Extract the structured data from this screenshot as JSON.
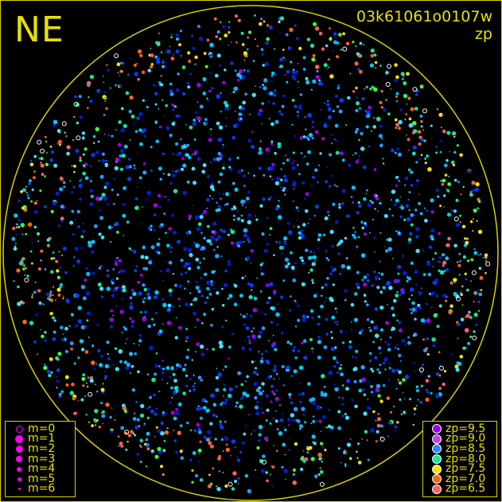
{
  "orientation_label": "NE",
  "title": {
    "id": "03k61061o0107w",
    "mode": "zp"
  },
  "colors": {
    "frame": "#d8d000",
    "text": "#e8e000",
    "background": "#000000"
  },
  "magnitude_legend": [
    {
      "label": "m=0",
      "style": "ring"
    },
    {
      "label": "m=1",
      "style": "dot"
    },
    {
      "label": "m=2",
      "style": "dot"
    },
    {
      "label": "m=3",
      "style": "dot"
    },
    {
      "label": "m=4",
      "style": "dot"
    },
    {
      "label": "m=5",
      "style": "dot"
    },
    {
      "label": "m=6",
      "style": "dot"
    }
  ],
  "magnitude_legend_color": "#ff00ff",
  "zp_legend": [
    {
      "label": "zp=9.5",
      "color": "#a000f0"
    },
    {
      "label": "zp=9.0",
      "color": "#c040e8"
    },
    {
      "label": "zp=8.5",
      "color": "#2888ff"
    },
    {
      "label": "zp=8.0",
      "color": "#10e8a0"
    },
    {
      "label": "zp=7.5",
      "color": "#ffe000"
    },
    {
      "label": "zp=7.0",
      "color": "#ff6418"
    },
    {
      "label": "zp=6.5",
      "color": "#ff6060"
    }
  ]
}
